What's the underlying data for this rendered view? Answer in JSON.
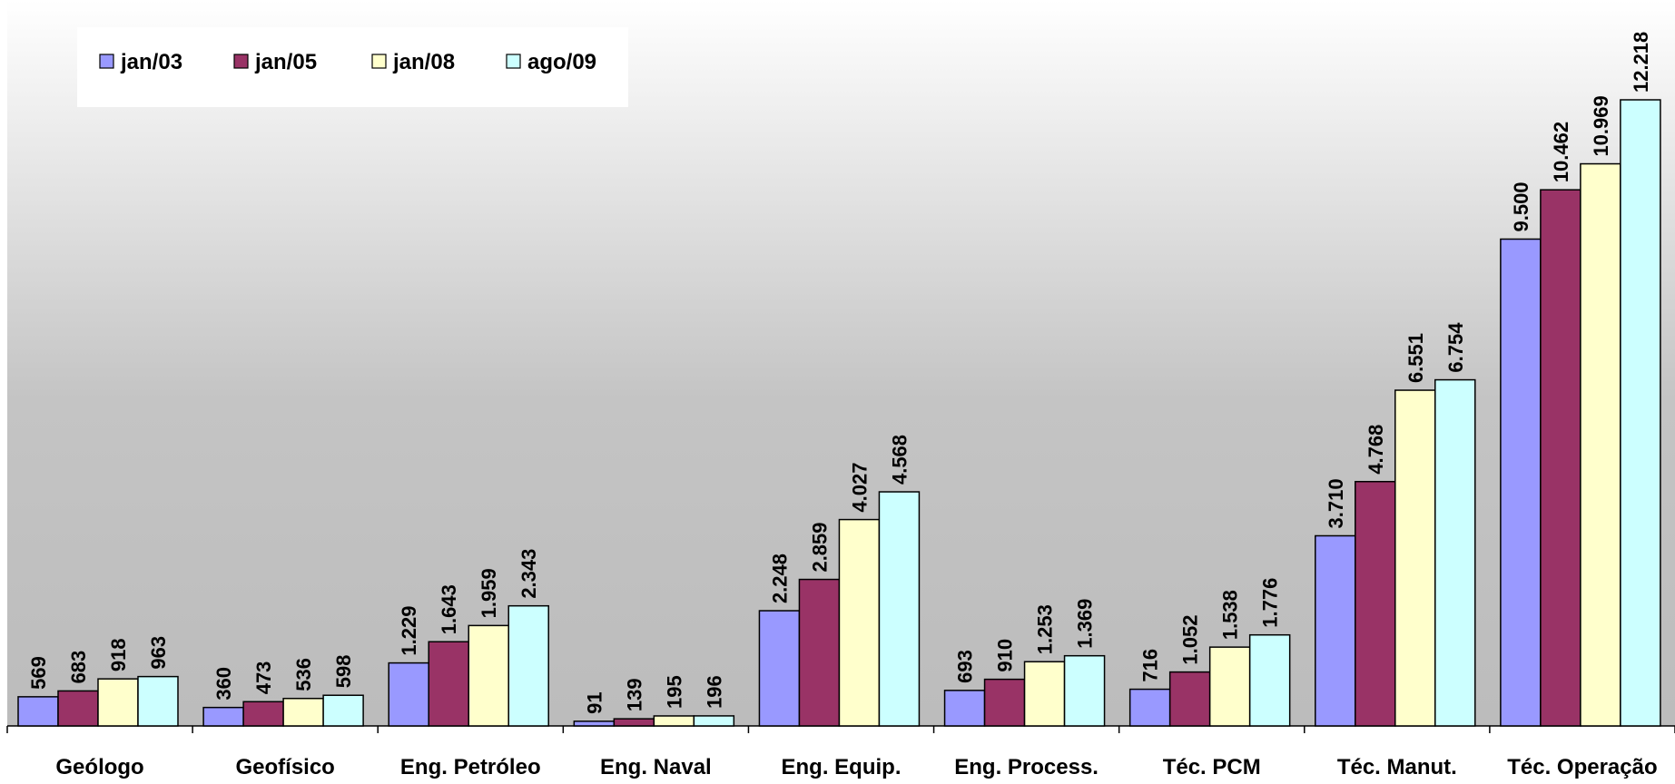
{
  "chart_data": {
    "type": "bar",
    "title": "",
    "xlabel": "",
    "ylabel": "",
    "ylim": [
      0,
      12500
    ],
    "grid": false,
    "legend_position": "top-left",
    "categories": [
      "Geólogo",
      "Geofísico",
      "Eng. Petróleo",
      "Eng. Naval",
      "Eng. Equip.",
      "Eng. Process.",
      "Téc. PCM",
      "Téc. Manut.",
      "Téc. Operação"
    ],
    "series": [
      {
        "name": "jan/03",
        "color": "#9999ff",
        "values": [
          569,
          360,
          1229,
          91,
          2248,
          693,
          716,
          3710,
          9500
        ],
        "labels": [
          "569",
          "360",
          "1.229",
          "91",
          "2.248",
          "693",
          "716",
          "3.710",
          "9.500"
        ]
      },
      {
        "name": "jan/05",
        "color": "#993366",
        "values": [
          683,
          473,
          1643,
          139,
          2859,
          910,
          1052,
          4768,
          10462
        ],
        "labels": [
          "683",
          "473",
          "1.643",
          "139",
          "2.859",
          "910",
          "1.052",
          "4.768",
          "10.462"
        ]
      },
      {
        "name": "jan/08",
        "color": "#ffffcc",
        "values": [
          918,
          536,
          1959,
          195,
          4027,
          1253,
          1538,
          6551,
          10969
        ],
        "labels": [
          "918",
          "536",
          "1.959",
          "195",
          "4.027",
          "1.253",
          "1.538",
          "6.551",
          "10.969"
        ]
      },
      {
        "name": "ago/09",
        "color": "#ccffff",
        "values": [
          963,
          598,
          2343,
          196,
          4568,
          1369,
          1776,
          6754,
          12218
        ],
        "labels": [
          "963",
          "598",
          "2.343",
          "196",
          "4.568",
          "1.369",
          "1.776",
          "6.754",
          "12.218"
        ]
      }
    ]
  }
}
